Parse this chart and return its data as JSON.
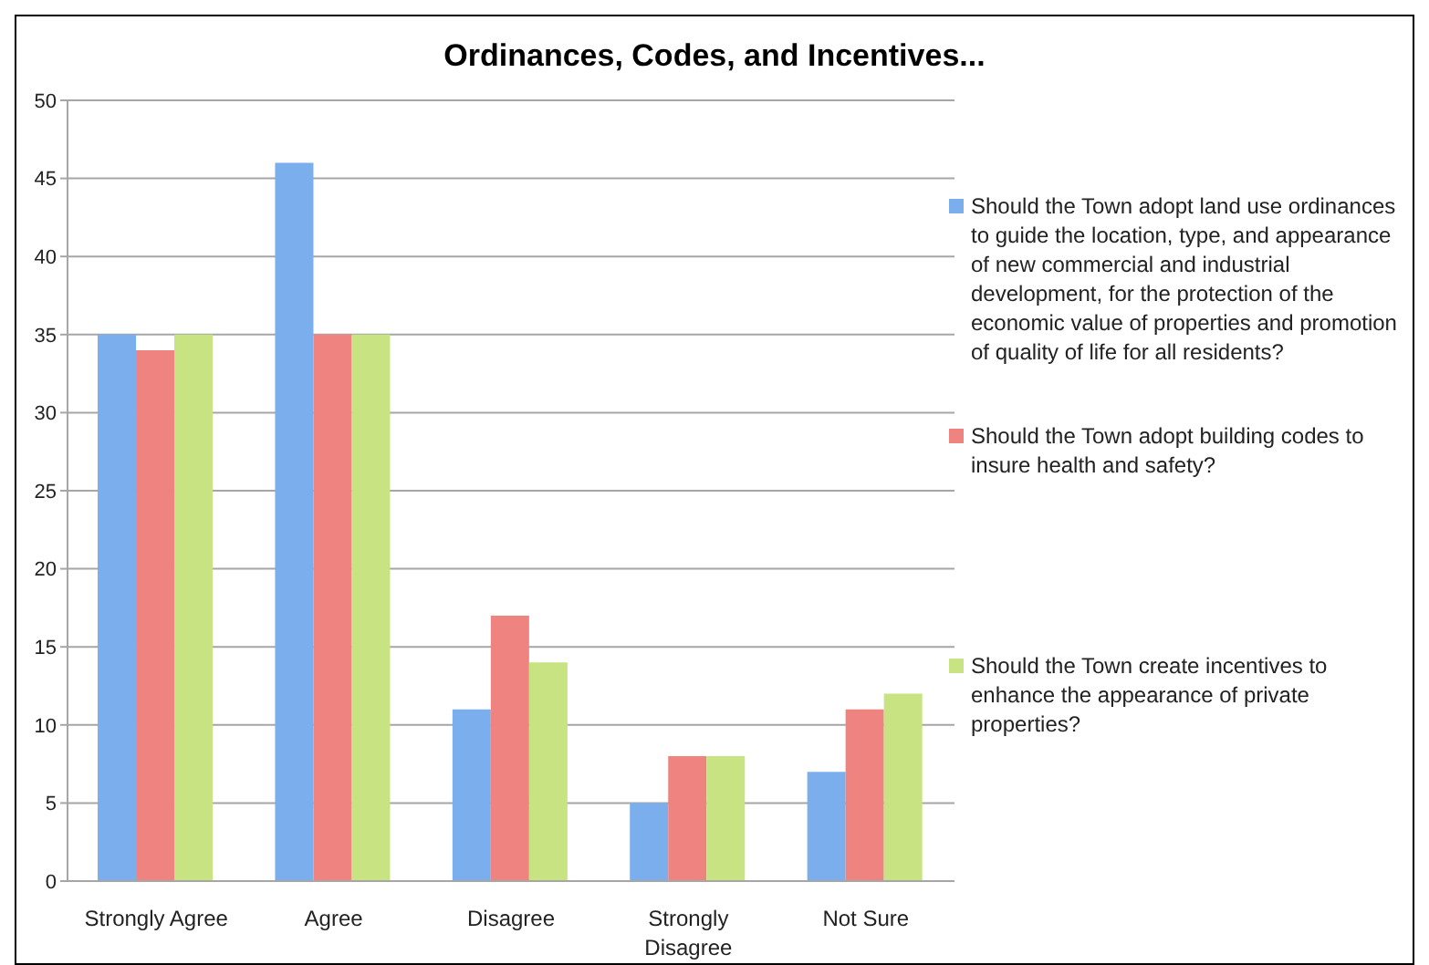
{
  "chart_data": {
    "type": "bar",
    "title": "Ordinances, Codes, and Incentives...",
    "categories": [
      "Strongly Agree",
      "Agree",
      "Disagree",
      "Strongly Disagree",
      "Not Sure"
    ],
    "series": [
      {
        "name": "Should the Town adopt land use ordinances to guide the location, type, and appearance of new commercial and industrial development, for the protection of the economic value of properties and promotion of quality of life for all residents?",
        "color": "#7aaeec",
        "values": [
          35,
          46,
          11,
          5,
          7
        ]
      },
      {
        "name": "Should the Town adopt building codes to insure health and safety?",
        "color": "#ee8380",
        "values": [
          34,
          35,
          17,
          8,
          11
        ]
      },
      {
        "name": "Should the Town create incentives to enhance the appearance of private properties?",
        "color": "#c7e382",
        "values": [
          35,
          35,
          14,
          8,
          12
        ]
      }
    ],
    "ylim": [
      0,
      50
    ],
    "yticks": [
      0,
      5,
      10,
      15,
      20,
      25,
      30,
      35,
      40,
      45,
      50
    ],
    "grid": "y",
    "legend": "right"
  }
}
